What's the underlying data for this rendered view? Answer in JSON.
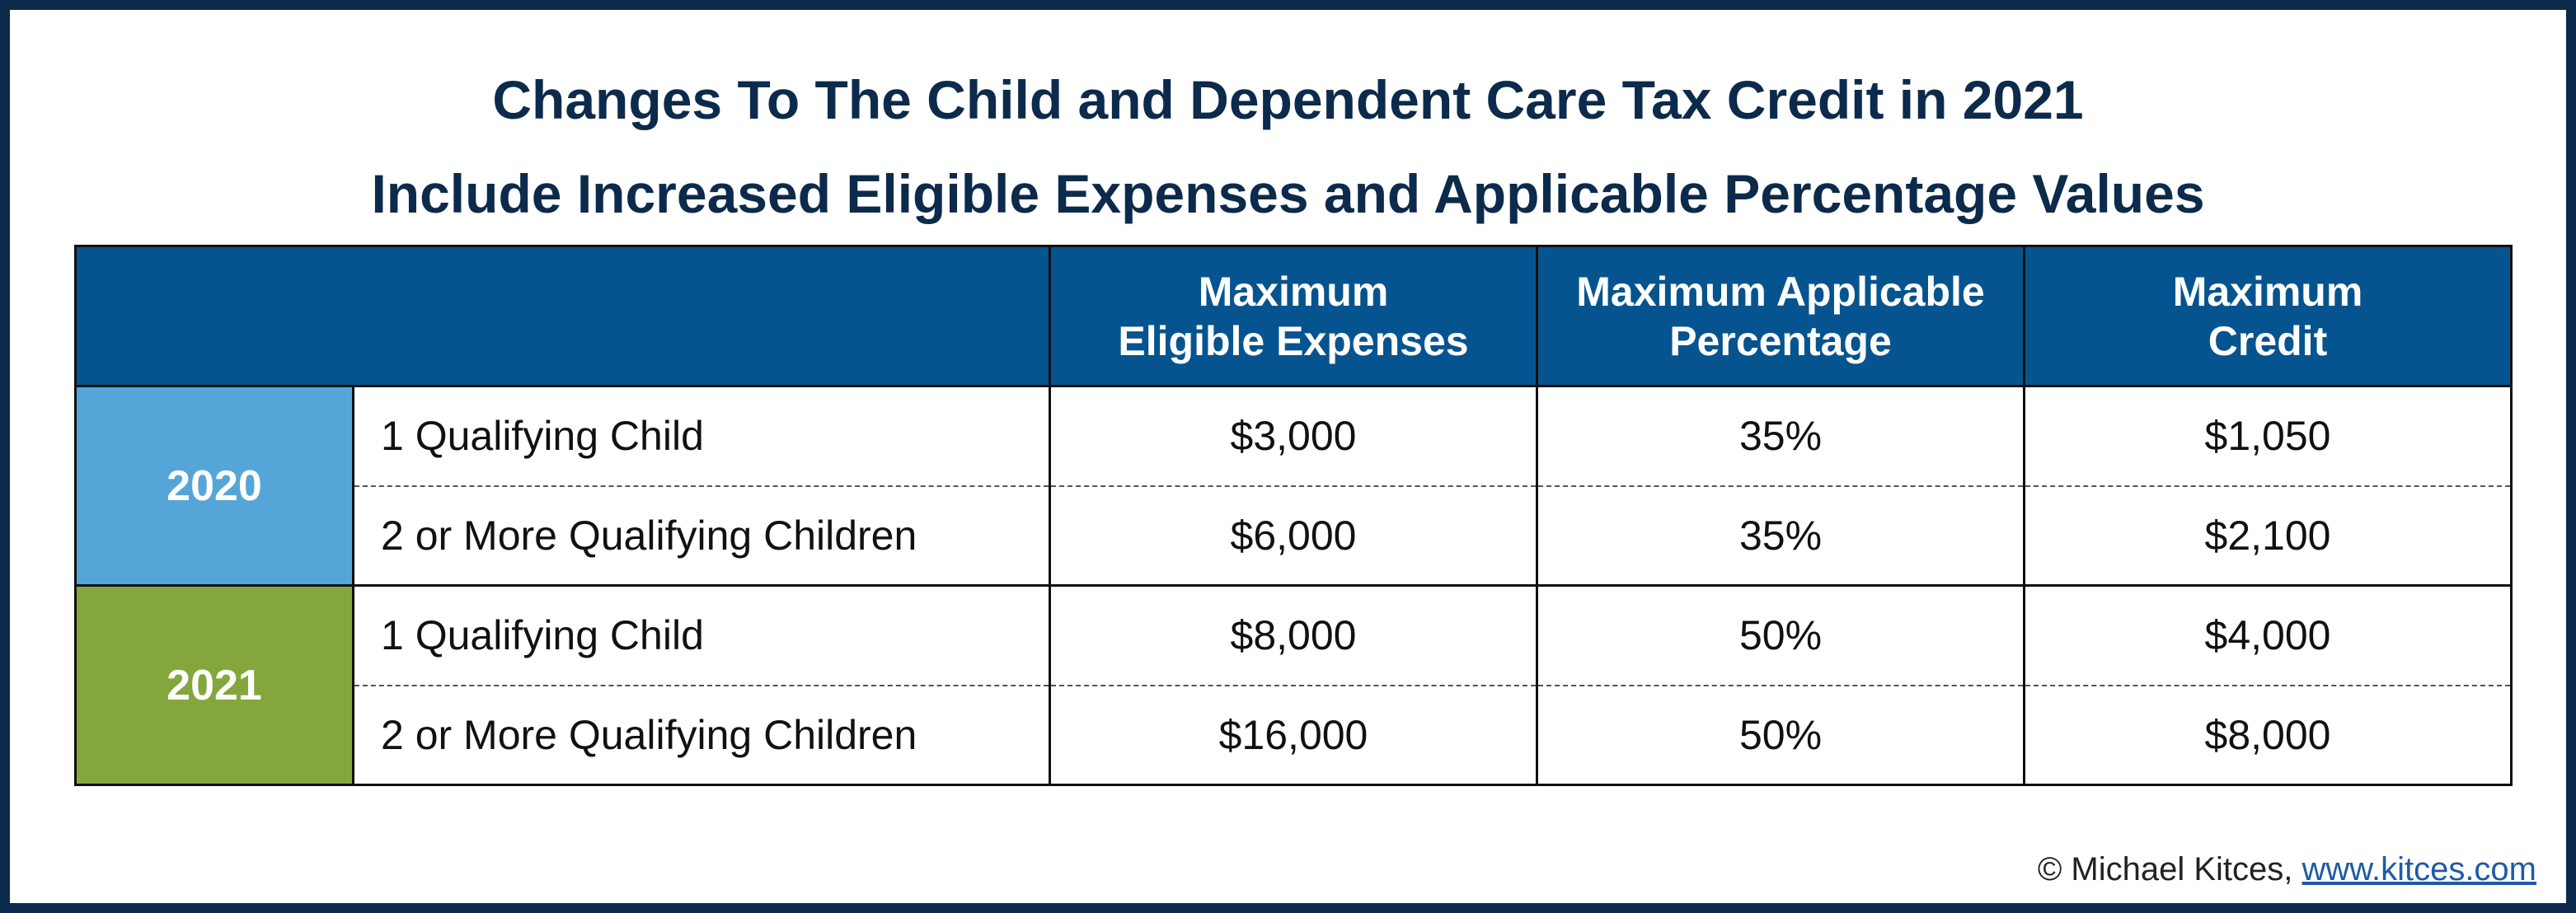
{
  "title": {
    "line1": "Changes To The Child and Dependent Care Tax Credit in 2021",
    "line2": "Include Increased Eligible Expenses and Applicable Percentage Values"
  },
  "columns": {
    "expenses_1": "Maximum",
    "expenses_2": "Eligible Expenses",
    "percentage_1": "Maximum Applicable",
    "percentage_2": "Percentage",
    "credit_1": "Maximum",
    "credit_2": "Credit"
  },
  "colors": {
    "header": "#06548f",
    "year_2020": "#56a5d8",
    "year_2021": "#84a63d",
    "border": "#0c2a4b"
  },
  "chart_data": {
    "type": "table",
    "title": "Changes To The Child and Dependent Care Tax Credit in 2021 Include Increased Eligible Expenses and Applicable Percentage Values",
    "headers": [
      "",
      "",
      "Maximum Eligible Expenses",
      "Maximum Applicable Percentage",
      "Maximum Credit"
    ],
    "groups": [
      {
        "year": "2020",
        "rows": [
          {
            "label": "1 Qualifying Child",
            "expenses": "$3,000",
            "percentage": "35%",
            "credit": "$1,050"
          },
          {
            "label": "2 or More Qualifying Children",
            "expenses": "$6,000",
            "percentage": "35%",
            "credit": "$2,100"
          }
        ]
      },
      {
        "year": "2021",
        "rows": [
          {
            "label": "1 Qualifying Child",
            "expenses": "$8,000",
            "percentage": "50%",
            "credit": "$4,000"
          },
          {
            "label": "2 or More Qualifying Children",
            "expenses": "$16,000",
            "percentage": "50%",
            "credit": "$8,000"
          }
        ]
      }
    ]
  },
  "footer": {
    "copyright": "© Michael Kitces, ",
    "link": "www.kitces.com"
  }
}
